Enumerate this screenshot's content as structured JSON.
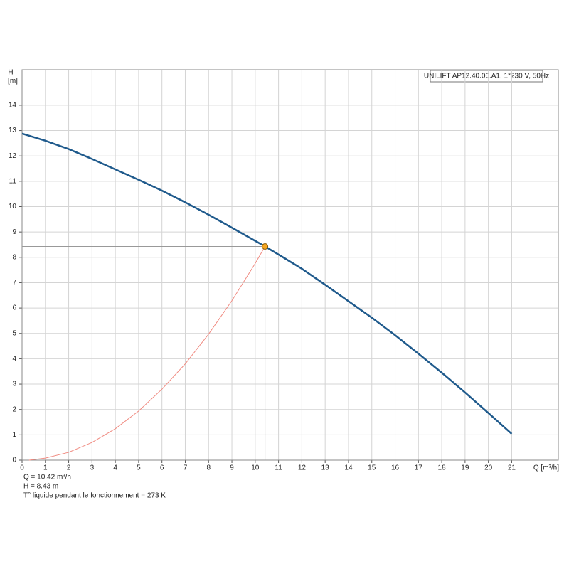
{
  "chart_data": {
    "type": "line",
    "title": "UNILIFT AP12.40.06.A1, 1*230 V, 50Hz",
    "y_label": "H",
    "y_unit": "[m]",
    "x_label": "Q [m³/h]",
    "xlim": [
      0,
      23
    ],
    "ylim": [
      0,
      15.4
    ],
    "xticks": [
      0,
      1,
      2,
      3,
      4,
      5,
      6,
      7,
      8,
      9,
      10,
      11,
      12,
      13,
      14,
      15,
      16,
      17,
      18,
      19,
      20,
      21
    ],
    "yticks": [
      0,
      1,
      2,
      3,
      4,
      5,
      6,
      7,
      8,
      9,
      10,
      11,
      12,
      13,
      14
    ],
    "grid": true,
    "series": [
      {
        "color": "#1f5a8c",
        "x": [
          0,
          1,
          2,
          3,
          4,
          5,
          6,
          7,
          8,
          9,
          10,
          10.42,
          11,
          12,
          13,
          14,
          15,
          16,
          17,
          18,
          19,
          20,
          21
        ],
        "values": [
          12.88,
          12.6,
          12.27,
          11.88,
          11.47,
          11.06,
          10.63,
          10.17,
          9.68,
          9.17,
          8.65,
          8.43,
          8.11,
          7.55,
          6.92,
          6.27,
          5.62,
          4.93,
          4.2,
          3.45,
          2.67,
          1.86,
          1.04
        ]
      },
      {
        "color": "#f08a80",
        "x": [
          0.3,
          1,
          2,
          3,
          4,
          5,
          6,
          7,
          8,
          9,
          10,
          10.42
        ],
        "values": [
          0,
          0.08,
          0.31,
          0.7,
          1.24,
          1.94,
          2.8,
          3.8,
          4.97,
          6.29,
          7.76,
          8.43
        ]
      }
    ],
    "operating_point": {
      "x": 10.42,
      "y": 8.43,
      "color": "#f5a623"
    },
    "annotations": [
      "Q = 10.42 m³/h",
      "H = 8.43 m",
      "T° liquide pendant le fonctionnement = 273 K"
    ]
  }
}
